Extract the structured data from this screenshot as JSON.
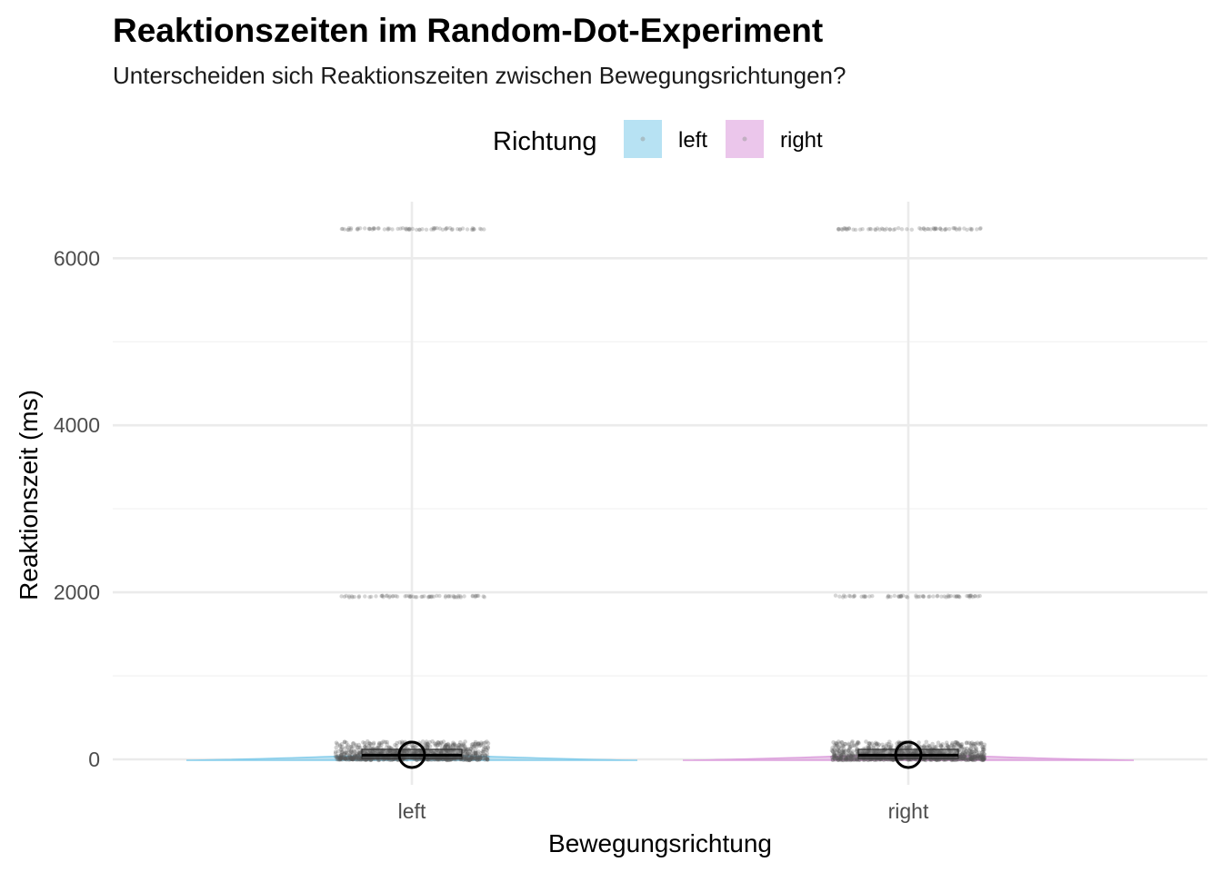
{
  "chart_data": {
    "type": "violin-box-jitter",
    "title": "Reaktionszeiten im Random-Dot-Experiment",
    "subtitle": "Unterscheiden sich Reaktionszeiten zwischen Bewegungsrichtungen?",
    "xlabel": "Bewegungsrichtung",
    "ylabel": "Reaktionszeit (ms)",
    "categories": [
      "left",
      "right"
    ],
    "ylim": [
      -300,
      6650
    ],
    "y_ticks": [
      0,
      2000,
      4000,
      6000
    ],
    "y_tick_labels": [
      "0",
      "2000",
      "4000",
      "6000"
    ],
    "y_minor_ticks": [
      1000,
      3000,
      5000
    ],
    "grid": true,
    "legend": {
      "title": "Richtung",
      "position": "top",
      "entries": [
        {
          "label": "left",
          "color": "#87CEEB"
        },
        {
          "label": "right",
          "color": "#DDA0DD"
        }
      ]
    },
    "series": [
      {
        "name": "left",
        "color": "#87CEEB",
        "box": {
          "min": 0,
          "q1": 10,
          "median": 50,
          "q3": 120,
          "max": 210
        },
        "mean": 55,
        "whisker_range": [
          0,
          210
        ],
        "outlier_clusters": [
          1950,
          6350
        ]
      },
      {
        "name": "right",
        "color": "#DDA0DD",
        "box": {
          "min": 0,
          "q1": 10,
          "median": 50,
          "q3": 120,
          "max": 210
        },
        "mean": 55,
        "whisker_range": [
          0,
          210
        ],
        "outlier_clusters": [
          1950,
          6350
        ]
      }
    ]
  }
}
